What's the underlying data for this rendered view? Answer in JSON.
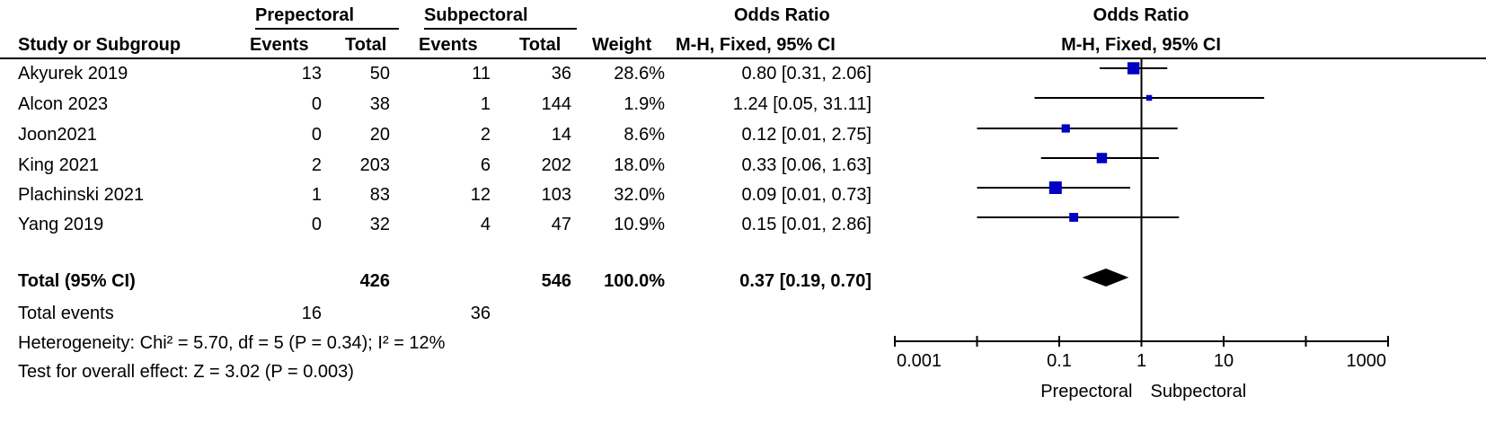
{
  "header": {
    "group1": "Prepectoral",
    "group2": "Subpectoral",
    "odds_ratio_left": "Odds Ratio",
    "odds_ratio_right": "Odds Ratio",
    "col_study": "Study or Subgroup",
    "col_events1": "Events",
    "col_total1": "Total",
    "col_events2": "Events",
    "col_total2": "Total",
    "col_weight": "Weight",
    "col_method_left": "M-H, Fixed, 95% CI",
    "col_method_right": "M-H, Fixed, 95% CI"
  },
  "studies": [
    {
      "name": "Akyurek 2019",
      "events1": "13",
      "total1": "50",
      "events2": "11",
      "total2": "36",
      "weight": "28.6%",
      "ci_text": "0.80 [0.31, 2.06]"
    },
    {
      "name": "Alcon 2023",
      "events1": "0",
      "total1": "38",
      "events2": "1",
      "total2": "144",
      "weight": "1.9%",
      "ci_text": "1.24 [0.05, 31.11]"
    },
    {
      "name": "Joon2021",
      "events1": "0",
      "total1": "20",
      "events2": "2",
      "total2": "14",
      "weight": "8.6%",
      "ci_text": "0.12 [0.01, 2.75]"
    },
    {
      "name": "King 2021",
      "events1": "2",
      "total1": "203",
      "events2": "6",
      "total2": "202",
      "weight": "18.0%",
      "ci_text": "0.33 [0.06, 1.63]"
    },
    {
      "name": "Plachinski 2021",
      "events1": "1",
      "total1": "83",
      "events2": "12",
      "total2": "103",
      "weight": "32.0%",
      "ci_text": "0.09 [0.01, 0.73]"
    },
    {
      "name": "Yang 2019",
      "events1": "0",
      "total1": "32",
      "events2": "4",
      "total2": "47",
      "weight": "10.9%",
      "ci_text": "0.15 [0.01, 2.86]"
    }
  ],
  "total_row": {
    "label": "Total (95% CI)",
    "total1": "426",
    "total2": "546",
    "weight": "100.0%",
    "ci_text": "0.37 [0.19, 0.70]"
  },
  "total_events": {
    "label": "Total events",
    "events1": "16",
    "events2": "36"
  },
  "heterogeneity": "Heterogeneity: Chi² = 5.70, df = 5 (P = 0.34); I² = 12%",
  "overall_effect": "Test for overall effect: Z = 3.02 (P = 0.003)",
  "chart_data": {
    "type": "forest",
    "scale": "log",
    "xlim": [
      0.001,
      1000
    ],
    "null_line": 1,
    "ticks": [
      {
        "value": 0.001,
        "label": "0.001"
      },
      {
        "value": 0.1,
        "label": "0.1"
      },
      {
        "value": 1,
        "label": "1"
      },
      {
        "value": 10,
        "label": "10"
      },
      {
        "value": 1000,
        "label": "1000"
      }
    ],
    "favours_left": "Prepectoral",
    "favours_right": "Subpectoral",
    "studies": [
      {
        "name": "Akyurek 2019",
        "or": 0.8,
        "lower": 0.31,
        "upper": 2.06,
        "weight": 28.6
      },
      {
        "name": "Alcon 2023",
        "or": 1.24,
        "lower": 0.05,
        "upper": 31.11,
        "weight": 1.9
      },
      {
        "name": "Joon2021",
        "or": 0.12,
        "lower": 0.01,
        "upper": 2.75,
        "weight": 8.6
      },
      {
        "name": "King 2021",
        "or": 0.33,
        "lower": 0.06,
        "upper": 1.63,
        "weight": 18.0
      },
      {
        "name": "Plachinski 2021",
        "or": 0.09,
        "lower": 0.01,
        "upper": 0.73,
        "weight": 32.0
      },
      {
        "name": "Yang 2019",
        "or": 0.15,
        "lower": 0.01,
        "upper": 2.86,
        "weight": 10.9
      }
    ],
    "pooled": {
      "or": 0.37,
      "lower": 0.19,
      "upper": 0.7
    },
    "colors": {
      "marker": "#0000c0",
      "diamond": "#000000",
      "line": "#000000"
    }
  }
}
